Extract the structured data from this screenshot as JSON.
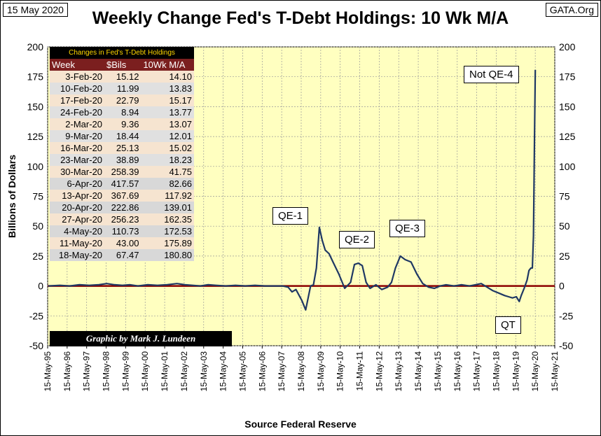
{
  "date_label": "15 May 2020",
  "source_label": "GATA.Org",
  "chart_data": {
    "type": "line",
    "title": "Weekly Change Fed's T-Debt Holdings: 10 Wk M/A",
    "ylabel": "Billions  of  Dollars",
    "xlabel": "Source Federal Reserve",
    "ylim": [
      -50,
      200
    ],
    "yticks": [
      -50,
      -25,
      0,
      25,
      50,
      75,
      100,
      125,
      150,
      175,
      200
    ],
    "xlim": [
      1995.37,
      2021.37
    ],
    "xtick_labels": [
      "15-May-95",
      "15-May-96",
      "15-May-97",
      "15-May-98",
      "15-May-99",
      "15-May-00",
      "15-May-01",
      "15-May-02",
      "15-May-03",
      "15-May-04",
      "15-May-05",
      "15-May-06",
      "15-May-07",
      "15-May-08",
      "15-May-09",
      "15-May-10",
      "15-May-11",
      "15-May-12",
      "15-May-13",
      "15-May-14",
      "15-May-15",
      "15-May-16",
      "15-May-17",
      "15-May-18",
      "15-May-19",
      "15-May-20",
      "15-May-21"
    ],
    "grid": true,
    "zero_line_color": "#8b0000",
    "line_color": "#1f3864",
    "plot_bg": "#ffffc0",
    "series": [
      {
        "name": "10 Wk M/A",
        "x": [
          1995.4,
          1996.0,
          1996.5,
          1997.0,
          1997.5,
          1998.0,
          1998.4,
          1998.8,
          1999.2,
          1999.6,
          2000.0,
          2000.5,
          2001.0,
          2001.5,
          2002.0,
          2002.4,
          2002.8,
          2003.2,
          2003.6,
          2004.0,
          2004.5,
          2005.0,
          2005.5,
          2006.0,
          2006.5,
          2007.0,
          2007.4,
          2007.7,
          2007.9,
          2008.1,
          2008.4,
          2008.6,
          2008.75,
          2008.85,
          2009.0,
          2009.15,
          2009.3,
          2009.45,
          2009.6,
          2009.8,
          2010.0,
          2010.3,
          2010.6,
          2010.9,
          2011.1,
          2011.3,
          2011.5,
          2011.7,
          2011.9,
          2012.2,
          2012.5,
          2012.8,
          2013.0,
          2013.2,
          2013.45,
          2013.7,
          2014.0,
          2014.3,
          2014.6,
          2014.9,
          2015.2,
          2015.5,
          2015.8,
          2016.2,
          2016.6,
          2017.0,
          2017.3,
          2017.6,
          2017.9,
          2018.2,
          2018.5,
          2018.8,
          2019.0,
          2019.2,
          2019.4,
          2019.55,
          2019.65,
          2019.8,
          2019.95,
          2020.05,
          2020.15,
          2020.22,
          2020.28,
          2020.33,
          2020.37
        ],
        "values": [
          0,
          0.5,
          0,
          1,
          0.5,
          1,
          2,
          1,
          0.5,
          1,
          0,
          1,
          0.5,
          1,
          2,
          1,
          0.5,
          0,
          1,
          0.5,
          0,
          0.5,
          0,
          0.5,
          0,
          0,
          0,
          -1,
          -5,
          -3,
          -12,
          -20,
          -8,
          0,
          1,
          15,
          49,
          38,
          30,
          27,
          20,
          10,
          -2,
          3,
          18,
          19,
          17,
          3,
          -2,
          1,
          -3,
          -1,
          3,
          15,
          25,
          22,
          20,
          10,
          2,
          -1,
          -2,
          0,
          1,
          0,
          1,
          0,
          1,
          2,
          -1,
          -4,
          -6,
          -8,
          -9,
          -10,
          -9,
          -13,
          -8,
          -2,
          5,
          13,
          15,
          15,
          42,
          120,
          180.8
        ]
      }
    ],
    "annotations": [
      "QE-1",
      "QE-2",
      "QE-3",
      "Not QE-4",
      "QT"
    ]
  },
  "table": {
    "caption": "Changes in Fed's T-Debt Holdings",
    "headers": [
      "Week",
      "$Bils",
      "10Wk M/A"
    ],
    "rows": [
      [
        "3-Feb-20",
        "15.12",
        "14.10"
      ],
      [
        "10-Feb-20",
        "11.99",
        "13.83"
      ],
      [
        "17-Feb-20",
        "22.79",
        "15.17"
      ],
      [
        "24-Feb-20",
        "8.94",
        "13.77"
      ],
      [
        "2-Mar-20",
        "9.36",
        "13.07"
      ],
      [
        "9-Mar-20",
        "18.44",
        "12.01"
      ],
      [
        "16-Mar-20",
        "25.13",
        "15.02"
      ],
      [
        "23-Mar-20",
        "38.89",
        "18.23"
      ],
      [
        "30-Mar-20",
        "258.39",
        "41.75"
      ],
      [
        "6-Apr-20",
        "417.57",
        "82.66"
      ],
      [
        "13-Apr-20",
        "367.69",
        "117.92"
      ],
      [
        "20-Apr-20",
        "222.86",
        "139.01"
      ],
      [
        "27-Apr-20",
        "256.23",
        "162.35"
      ],
      [
        "4-May-20",
        "110.73",
        "172.53"
      ],
      [
        "11-May-20",
        "43.00",
        "175.89"
      ],
      [
        "18-May-20",
        "67.47",
        "180.80"
      ]
    ]
  },
  "credit": "Graphic by Mark J. Lundeen"
}
